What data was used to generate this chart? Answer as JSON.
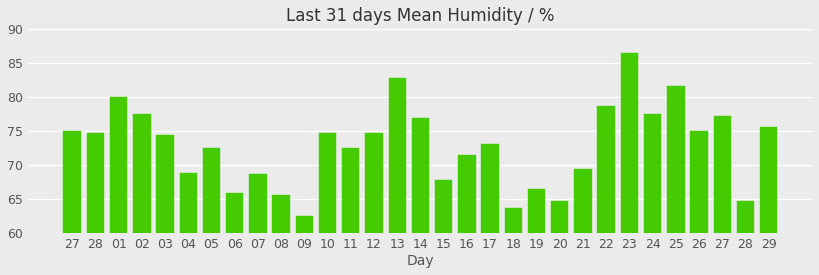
{
  "title": "Last 31 days Mean Humidity / %",
  "xlabel": "Day",
  "ylabel": "",
  "categories": [
    "27",
    "28",
    "01",
    "02",
    "03",
    "04",
    "05",
    "06",
    "07",
    "08",
    "09",
    "10",
    "11",
    "12",
    "13",
    "14",
    "15",
    "16",
    "17",
    "18",
    "19",
    "20",
    "21",
    "22",
    "23",
    "24",
    "25",
    "26",
    "27",
    "28",
    "29"
  ],
  "values": [
    75.0,
    74.8,
    80.1,
    77.5,
    74.5,
    68.9,
    72.5,
    66.0,
    68.8,
    65.6,
    62.5,
    74.8,
    72.5,
    74.8,
    82.8,
    77.0,
    67.8,
    71.5,
    73.2,
    63.8,
    66.5,
    64.8,
    69.5,
    78.7,
    86.5,
    77.5,
    81.7,
    75.0,
    77.3,
    64.8,
    75.7
  ],
  "bar_color": "#44cc00",
  "bar_edge_color": "#44cc00",
  "background_color": "#ebebeb",
  "plot_bg_color": "#ebebeb",
  "grid_color": "#ffffff",
  "ylim": [
    60,
    90
  ],
  "yticks": [
    60,
    65,
    70,
    75,
    80,
    85,
    90
  ],
  "title_fontsize": 12,
  "axis_label_fontsize": 10,
  "tick_fontsize": 9
}
